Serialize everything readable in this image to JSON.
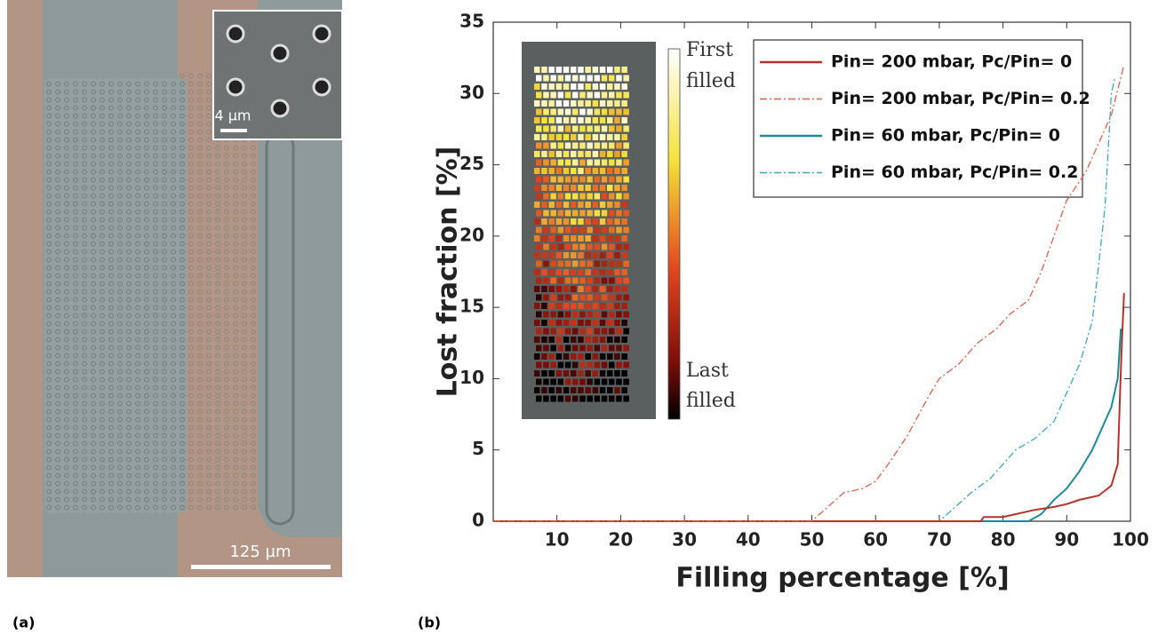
{
  "panel_a": {
    "label": "(a)",
    "inset_scale": "4 µm",
    "scale": "125 µm"
  },
  "chart_data": {
    "type": "line",
    "panel_label": "(b)",
    "xlabel": "Filling percentage [%]",
    "ylabel": "Lost fraction [%]",
    "xlim": [
      0,
      100
    ],
    "ylim": [
      0,
      35
    ],
    "xticks": [
      10,
      20,
      30,
      40,
      50,
      60,
      70,
      80,
      90,
      100
    ],
    "yticks": [
      0,
      5,
      10,
      15,
      20,
      25,
      30,
      35
    ],
    "inset_labels": [
      "First",
      "filled",
      "Last",
      "filled"
    ],
    "series": [
      {
        "name": "Pin= 200 mbar, Pc/Pin= 0",
        "color": "#b5332a",
        "style": "solid",
        "x": [
          0,
          76.5,
          77,
          80,
          82,
          85,
          88,
          90,
          92,
          95,
          97,
          98,
          98.3,
          98.6,
          99
        ],
        "values": [
          0,
          0,
          0.3,
          0.3,
          0.5,
          0.8,
          1.0,
          1.2,
          1.5,
          1.8,
          2.5,
          4,
          8,
          12,
          16
        ]
      },
      {
        "name": "Pin= 200 mbar, Pc/Pin= 0.2",
        "color": "#e0604a",
        "style": "dashdot",
        "x": [
          0,
          50,
          52,
          55,
          58,
          60,
          62,
          65,
          68,
          70,
          73,
          76,
          79,
          81,
          84,
          86,
          88,
          90,
          93,
          95,
          97,
          99
        ],
        "values": [
          0,
          0,
          0.8,
          2,
          2.3,
          2.8,
          4,
          6,
          8.5,
          10,
          11,
          12.5,
          13.5,
          14.5,
          15.5,
          17.5,
          20,
          22.5,
          24.5,
          26.5,
          28.5,
          32
        ]
      },
      {
        "name": "Pin= 60 mbar,  Pc/Pin= 0",
        "color": "#1b8a99",
        "style": "solid",
        "x": [
          0,
          84,
          86,
          88,
          90,
          92,
          94,
          95,
          96,
          97,
          98,
          98.5
        ],
        "values": [
          0,
          0,
          0.5,
          1.5,
          2.3,
          3.5,
          5,
          6,
          7,
          8,
          10,
          13.5
        ]
      },
      {
        "name": "Pin= 60 mbar,  Pc/Pin= 0.2",
        "color": "#3aa6c2",
        "style": "dashdot",
        "x": [
          0,
          70,
          72,
          75,
          78,
          80,
          82,
          85,
          88,
          90,
          92,
          94,
          95,
          96,
          96.5,
          97,
          97.5
        ],
        "values": [
          0,
          0,
          0.8,
          2,
          3,
          4,
          5,
          5.8,
          7,
          9,
          11,
          14,
          18,
          22,
          26,
          30,
          31
        ]
      }
    ]
  }
}
